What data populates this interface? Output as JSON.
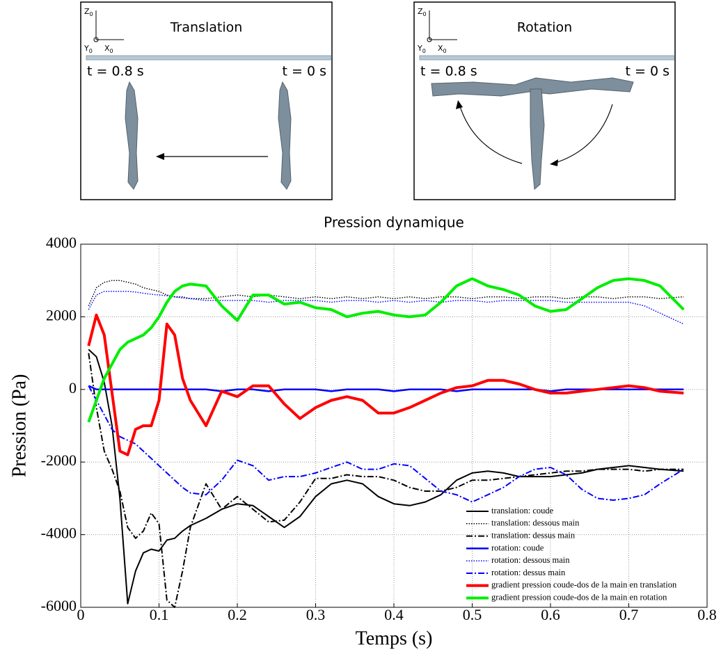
{
  "panels": [
    {
      "title": "Translation",
      "t_left": "t = 0.8 s",
      "t_right": "t = 0 s"
    },
    {
      "title": "Rotation",
      "t_left": "t = 0.8 s",
      "t_right": "t = 0 s"
    }
  ],
  "frame_axes": [
    {
      "name": "Z",
      "sub": "0"
    },
    {
      "name": "Y",
      "sub": "0"
    },
    {
      "name": "X",
      "sub": "0"
    }
  ],
  "chart_data": {
    "type": "line",
    "title": "Pression dynamique",
    "xlabel": "Temps (s)",
    "ylabel": "Pression (Pa)",
    "xlim": [
      0,
      0.8
    ],
    "ylim": [
      -6000,
      4000
    ],
    "xticks": [
      0,
      0.1,
      0.2,
      0.3,
      0.4,
      0.5,
      0.6,
      0.7,
      0.8
    ],
    "yticks": [
      -6000,
      -4000,
      -2000,
      0,
      2000,
      4000
    ],
    "grid": true,
    "legend": "lower right",
    "x": [
      0.01,
      0.02,
      0.03,
      0.04,
      0.05,
      0.06,
      0.07,
      0.08,
      0.09,
      0.1,
      0.11,
      0.12,
      0.13,
      0.14,
      0.16,
      0.18,
      0.2,
      0.22,
      0.24,
      0.26,
      0.28,
      0.3,
      0.32,
      0.34,
      0.36,
      0.38,
      0.4,
      0.42,
      0.44,
      0.46,
      0.48,
      0.5,
      0.52,
      0.54,
      0.56,
      0.58,
      0.6,
      0.62,
      0.64,
      0.66,
      0.68,
      0.7,
      0.72,
      0.74,
      0.77
    ],
    "series": [
      {
        "name": "translation: coude",
        "color": "#000000",
        "dash": "solid",
        "width": 2,
        "values": [
          1100,
          900,
          200,
          -1000,
          -3000,
          -5900,
          -5000,
          -4500,
          -4400,
          -4450,
          -4150,
          -4100,
          -3900,
          -3750,
          -3550,
          -3300,
          -3150,
          -3200,
          -3500,
          -3800,
          -3500,
          -2950,
          -2600,
          -2500,
          -2600,
          -2950,
          -3150,
          -3200,
          -3100,
          -2900,
          -2500,
          -2300,
          -2250,
          -2300,
          -2400,
          -2400,
          -2400,
          -2350,
          -2300,
          -2200,
          -2150,
          -2100,
          -2150,
          -2200,
          -2250
        ]
      },
      {
        "name": "translation: dessous main",
        "color": "#000000",
        "dash": "dotted",
        "width": 1.5,
        "values": [
          2300,
          2800,
          2950,
          3000,
          3000,
          2950,
          2900,
          2800,
          2750,
          2700,
          2600,
          2550,
          2550,
          2500,
          2500,
          2550,
          2600,
          2550,
          2600,
          2550,
          2500,
          2550,
          2500,
          2550,
          2500,
          2550,
          2500,
          2550,
          2500,
          2550,
          2550,
          2500,
          2550,
          2550,
          2500,
          2550,
          2550,
          2500,
          2550,
          2550,
          2500,
          2550,
          2550,
          2500,
          2550
        ]
      },
      {
        "name": "translation: dessus main",
        "color": "#000000",
        "dash": "dashdot",
        "width": 2,
        "values": [
          1000,
          -500,
          -1700,
          -2200,
          -2800,
          -3800,
          -4100,
          -3900,
          -3400,
          -3700,
          -5800,
          -6000,
          -5000,
          -3800,
          -2600,
          -3300,
          -2950,
          -3300,
          -3650,
          -3600,
          -3100,
          -2450,
          -2450,
          -2350,
          -2400,
          -2400,
          -2500,
          -2700,
          -2800,
          -2800,
          -2700,
          -2500,
          -2500,
          -2450,
          -2400,
          -2350,
          -2300,
          -2250,
          -2250,
          -2200,
          -2200,
          -2200,
          -2250,
          -2200,
          -2200
        ]
      },
      {
        "name": "rotation: coude",
        "color": "#0000ff",
        "dash": "solid",
        "width": 2.5,
        "values": [
          100,
          0,
          0,
          0,
          0,
          0,
          0,
          0,
          0,
          0,
          0,
          0,
          0,
          0,
          0,
          -50,
          0,
          0,
          -50,
          0,
          0,
          0,
          -50,
          0,
          0,
          0,
          -50,
          0,
          0,
          0,
          -50,
          0,
          0,
          0,
          0,
          0,
          -50,
          0,
          0,
          0,
          0,
          0,
          0,
          0,
          0
        ]
      },
      {
        "name": "rotation: dessous main",
        "color": "#0000ff",
        "dash": "dotted",
        "width": 1.5,
        "values": [
          2200,
          2600,
          2700,
          2700,
          2700,
          2700,
          2680,
          2650,
          2620,
          2600,
          2580,
          2550,
          2520,
          2500,
          2450,
          2450,
          2450,
          2450,
          2400,
          2450,
          2450,
          2450,
          2400,
          2450,
          2450,
          2400,
          2450,
          2400,
          2450,
          2400,
          2450,
          2450,
          2400,
          2450,
          2450,
          2450,
          2450,
          2400,
          2400,
          2400,
          2400,
          2400,
          2300,
          2100,
          1800
        ]
      },
      {
        "name": "rotation: dessus main",
        "color": "#0000ff",
        "dash": "dashdot",
        "width": 2,
        "values": [
          100,
          -300,
          -700,
          -1100,
          -1300,
          -1400,
          -1500,
          -1700,
          -1900,
          -2100,
          -2300,
          -2500,
          -2700,
          -2850,
          -2900,
          -2500,
          -1950,
          -2100,
          -2500,
          -2400,
          -2400,
          -2300,
          -2150,
          -2000,
          -2200,
          -2200,
          -2050,
          -2100,
          -2450,
          -2800,
          -2900,
          -3100,
          -2900,
          -2700,
          -2400,
          -2200,
          -2150,
          -2350,
          -2750,
          -3000,
          -3050,
          -3000,
          -2900,
          -2600,
          -2200
        ]
      },
      {
        "name": "gradient pression coude-dos de la main en translation",
        "color": "#ff0000",
        "dash": "solid",
        "width": 4,
        "values": [
          1200,
          2050,
          1500,
          -100,
          -1700,
          -1800,
          -1100,
          -1000,
          -1000,
          -300,
          1800,
          1500,
          300,
          -300,
          -1000,
          -50,
          -200,
          100,
          100,
          -400,
          -800,
          -500,
          -300,
          -200,
          -300,
          -650,
          -650,
          -500,
          -300,
          -100,
          50,
          100,
          250,
          250,
          150,
          0,
          -100,
          -100,
          -50,
          0,
          50,
          100,
          50,
          -50,
          -100
        ]
      },
      {
        "name": "gradient pression coude-dos de la main en rotation",
        "color": "#00ee00",
        "dash": "solid",
        "width": 4,
        "values": [
          -900,
          -300,
          300,
          700,
          1100,
          1300,
          1400,
          1500,
          1700,
          2000,
          2400,
          2700,
          2850,
          2900,
          2850,
          2300,
          1900,
          2600,
          2600,
          2350,
          2400,
          2250,
          2200,
          2000,
          2100,
          2150,
          2050,
          2000,
          2050,
          2400,
          2850,
          3050,
          2850,
          2750,
          2600,
          2300,
          2150,
          2200,
          2500,
          2800,
          3000,
          3050,
          3000,
          2850,
          2200
        ]
      }
    ]
  }
}
